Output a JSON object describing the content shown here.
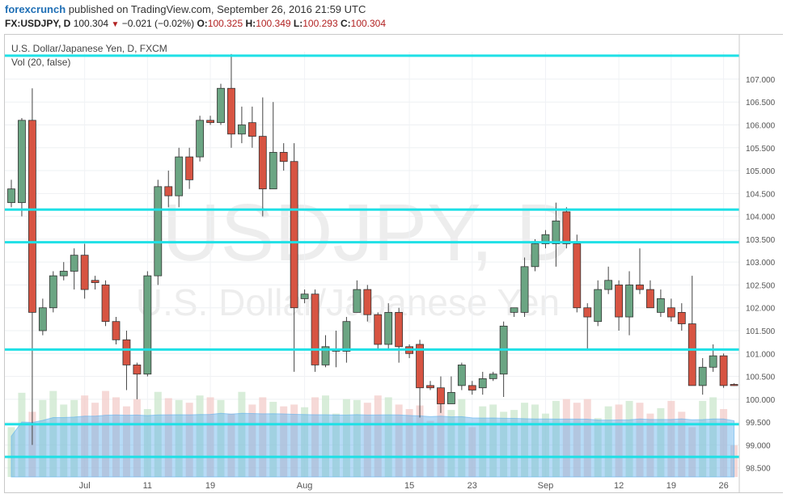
{
  "header": {
    "brand": "forexcrunch",
    "published": "published on TradingView.com, September 26, 2016 21:59 UTC",
    "symbol": "FX:USDJPY, D",
    "last": "100.304",
    "change": "−0.021 (−0.02%)",
    "o_label": "O:",
    "o_val": "100.325",
    "h_label": "H:",
    "h_val": "100.349",
    "l_label": "L:",
    "l_val": "100.293",
    "c_label": "C:",
    "c_val": "100.304"
  },
  "chart": {
    "instrument_title": "U.S. Dollar/Japanese Yen, D, FXCM",
    "vol_label": "Vol (20, false)",
    "watermark_symbol": "USDJPY, D",
    "watermark_name": "U.S. Dollar/Japanese Yen"
  },
  "chart_data": {
    "type": "candlestick",
    "y_range": [
      98.3,
      107.6
    ],
    "y_ticks": [
      "98.500",
      "99.000",
      "99.500",
      "100.000",
      "100.500",
      "101.000",
      "101.500",
      "102.000",
      "102.500",
      "103.000",
      "103.500",
      "104.000",
      "104.500",
      "105.000",
      "105.500",
      "106.000",
      "106.500",
      "107.000"
    ],
    "x_ticks": [
      "Jul",
      "11",
      "19",
      "Aug",
      "15",
      "23",
      "Sep",
      "12",
      "19",
      "26"
    ],
    "horizontal_lines": [
      "107.514",
      "104.147",
      "103.433",
      "101.087",
      "99.454",
      "98.740"
    ],
    "last_price_label": "100.304",
    "candles": [
      {
        "o": 104.3,
        "h": 104.8,
        "l": 104.2,
        "c": 104.6
      },
      {
        "o": 104.3,
        "h": 106.15,
        "l": 104.0,
        "c": 106.1
      },
      {
        "o": 106.1,
        "h": 106.8,
        "l": 99.0,
        "c": 101.9
      },
      {
        "o": 101.5,
        "h": 102.2,
        "l": 101.4,
        "c": 102.0
      },
      {
        "o": 102.0,
        "h": 102.8,
        "l": 101.9,
        "c": 102.7
      },
      {
        "o": 102.7,
        "h": 103.0,
        "l": 102.6,
        "c": 102.8
      },
      {
        "o": 102.8,
        "h": 103.3,
        "l": 102.4,
        "c": 103.15
      },
      {
        "o": 103.15,
        "h": 103.4,
        "l": 102.2,
        "c": 102.4
      },
      {
        "o": 102.6,
        "h": 102.7,
        "l": 102.4,
        "c": 102.55
      },
      {
        "o": 102.5,
        "h": 102.6,
        "l": 101.6,
        "c": 101.7
      },
      {
        "o": 101.7,
        "h": 101.8,
        "l": 101.2,
        "c": 101.3
      },
      {
        "o": 101.3,
        "h": 101.5,
        "l": 100.2,
        "c": 100.75
      },
      {
        "o": 100.75,
        "h": 100.8,
        "l": 100.0,
        "c": 100.55
      },
      {
        "o": 100.55,
        "h": 102.8,
        "l": 100.5,
        "c": 102.7
      },
      {
        "o": 102.7,
        "h": 104.8,
        "l": 102.5,
        "c": 104.65
      },
      {
        "o": 104.65,
        "h": 105.0,
        "l": 104.2,
        "c": 104.45
      },
      {
        "o": 104.45,
        "h": 105.5,
        "l": 104.2,
        "c": 105.3
      },
      {
        "o": 105.3,
        "h": 105.5,
        "l": 104.6,
        "c": 104.8
      },
      {
        "o": 105.3,
        "h": 106.2,
        "l": 105.2,
        "c": 106.1
      },
      {
        "o": 106.1,
        "h": 106.2,
        "l": 106.0,
        "c": 106.05
      },
      {
        "o": 106.05,
        "h": 106.9,
        "l": 106.0,
        "c": 106.8
      },
      {
        "o": 106.8,
        "h": 107.55,
        "l": 105.5,
        "c": 105.8
      },
      {
        "o": 105.8,
        "h": 106.4,
        "l": 105.6,
        "c": 106.0
      },
      {
        "o": 106.05,
        "h": 106.4,
        "l": 105.5,
        "c": 105.75
      },
      {
        "o": 105.75,
        "h": 106.6,
        "l": 104.0,
        "c": 104.6
      },
      {
        "o": 104.6,
        "h": 106.5,
        "l": 104.6,
        "c": 105.4
      },
      {
        "o": 105.4,
        "h": 105.6,
        "l": 105.0,
        "c": 105.2
      },
      {
        "o": 105.2,
        "h": 105.6,
        "l": 100.6,
        "c": 102.0
      },
      {
        "o": 102.2,
        "h": 102.4,
        "l": 102.1,
        "c": 102.3
      },
      {
        "o": 102.3,
        "h": 102.4,
        "l": 100.6,
        "c": 100.75
      },
      {
        "o": 100.75,
        "h": 101.4,
        "l": 100.7,
        "c": 101.15
      },
      {
        "o": 101.05,
        "h": 101.5,
        "l": 100.7,
        "c": 101.1
      },
      {
        "o": 101.05,
        "h": 101.8,
        "l": 100.8,
        "c": 101.7
      },
      {
        "o": 101.9,
        "h": 102.6,
        "l": 101.9,
        "c": 102.4
      },
      {
        "o": 102.4,
        "h": 102.5,
        "l": 101.7,
        "c": 101.85
      },
      {
        "o": 101.85,
        "h": 101.9,
        "l": 101.1,
        "c": 101.2
      },
      {
        "o": 101.2,
        "h": 102.1,
        "l": 101.1,
        "c": 101.9
      },
      {
        "o": 101.9,
        "h": 102.0,
        "l": 100.8,
        "c": 101.15
      },
      {
        "o": 101.15,
        "h": 101.2,
        "l": 100.9,
        "c": 101.0
      },
      {
        "o": 101.2,
        "h": 101.3,
        "l": 99.6,
        "c": 100.25
      },
      {
        "o": 100.3,
        "h": 100.4,
        "l": 100.2,
        "c": 100.25
      },
      {
        "o": 100.25,
        "h": 100.5,
        "l": 99.7,
        "c": 99.9
      },
      {
        "o": 99.9,
        "h": 100.5,
        "l": 99.9,
        "c": 100.15
      },
      {
        "o": 100.3,
        "h": 100.8,
        "l": 100.2,
        "c": 100.75
      },
      {
        "o": 100.3,
        "h": 100.4,
        "l": 100.1,
        "c": 100.2
      },
      {
        "o": 100.25,
        "h": 100.6,
        "l": 100.1,
        "c": 100.45
      },
      {
        "o": 100.45,
        "h": 100.6,
        "l": 100.4,
        "c": 100.55
      },
      {
        "o": 100.55,
        "h": 101.7,
        "l": 100.05,
        "c": 101.6
      },
      {
        "o": 101.9,
        "h": 102.0,
        "l": 101.8,
        "c": 102.0
      },
      {
        "o": 101.9,
        "h": 103.1,
        "l": 101.8,
        "c": 102.9
      },
      {
        "o": 102.9,
        "h": 103.5,
        "l": 102.8,
        "c": 103.4
      },
      {
        "o": 103.4,
        "h": 103.7,
        "l": 103.3,
        "c": 103.6
      },
      {
        "o": 103.4,
        "h": 104.3,
        "l": 102.9,
        "c": 103.9
      },
      {
        "o": 104.1,
        "h": 104.2,
        "l": 103.3,
        "c": 103.4
      },
      {
        "o": 103.4,
        "h": 103.6,
        "l": 101.9,
        "c": 102.0
      },
      {
        "o": 102.0,
        "h": 102.1,
        "l": 101.1,
        "c": 101.8
      },
      {
        "o": 101.7,
        "h": 102.6,
        "l": 101.6,
        "c": 102.4
      },
      {
        "o": 102.4,
        "h": 102.9,
        "l": 102.3,
        "c": 102.6
      },
      {
        "o": 102.5,
        "h": 102.6,
        "l": 101.5,
        "c": 101.8
      },
      {
        "o": 101.8,
        "h": 102.8,
        "l": 101.4,
        "c": 102.5
      },
      {
        "o": 102.5,
        "h": 103.3,
        "l": 102.3,
        "c": 102.4
      },
      {
        "o": 102.4,
        "h": 102.6,
        "l": 102.0,
        "c": 102.0
      },
      {
        "o": 101.9,
        "h": 102.4,
        "l": 101.8,
        "c": 102.2
      },
      {
        "o": 102.0,
        "h": 102.2,
        "l": 101.7,
        "c": 101.8
      },
      {
        "o": 101.9,
        "h": 102.1,
        "l": 101.5,
        "c": 101.65
      },
      {
        "o": 101.65,
        "h": 102.7,
        "l": 100.3,
        "c": 100.3
      },
      {
        "o": 100.3,
        "h": 100.9,
        "l": 100.1,
        "c": 100.7
      },
      {
        "o": 100.7,
        "h": 101.2,
        "l": 100.6,
        "c": 100.95
      },
      {
        "o": 100.95,
        "h": 101.0,
        "l": 100.25,
        "c": 100.3
      },
      {
        "o": 100.325,
        "h": 100.349,
        "l": 100.293,
        "c": 100.304
      }
    ],
    "volume": [
      0.55,
      0.93,
      0.72,
      0.85,
      0.95,
      0.8,
      0.85,
      0.9,
      0.82,
      0.95,
      0.88,
      0.78,
      0.86,
      0.75,
      0.94,
      0.87,
      0.85,
      0.82,
      0.9,
      0.88,
      0.85,
      0.7,
      0.94,
      0.8,
      0.88,
      0.83,
      0.78,
      0.8,
      0.77,
      0.88,
      0.9,
      0.7,
      0.86,
      0.85,
      0.82,
      0.9,
      0.88,
      0.8,
      0.75,
      0.79,
      0.62,
      0.84,
      0.74,
      0.86,
      0.55,
      0.78,
      0.8,
      0.72,
      0.74,
      0.82,
      0.8,
      0.7,
      0.84,
      0.86,
      0.82,
      0.86,
      0.65,
      0.78,
      0.8,
      0.84,
      0.82,
      0.7,
      0.76,
      0.84,
      0.72,
      0.55,
      0.84,
      0.88,
      0.75,
      0.35
    ]
  }
}
